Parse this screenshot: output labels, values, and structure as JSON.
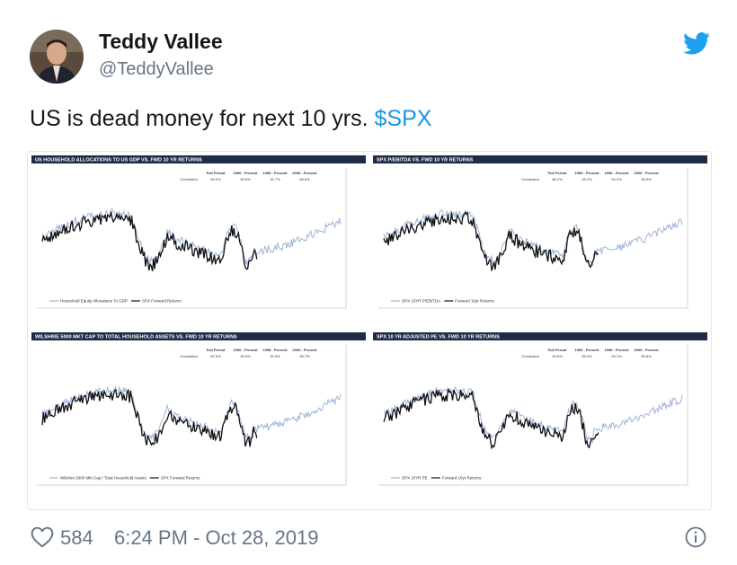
{
  "header": {
    "name": "Teddy Vallee",
    "handle": "@TeddyVallee"
  },
  "tweet": {
    "text": "US is dead money for next 10 yrs.",
    "cashtag": "$SPX"
  },
  "panels": [
    {
      "title": "US HOUSEHOLD ALLOCATIONS TO US GDP VS. FWD 10 YR RETURNS",
      "columns": [
        "Full Period",
        "1990 - Present",
        "1998 - Present",
        "2009 - Present"
      ],
      "row_label": "Correlation",
      "values": [
        "84.2%",
        "90.8%",
        "92.7%",
        "89.6%"
      ],
      "legend": [
        "Household Equity Allocations To GDP",
        "SPX Forward Returns"
      ]
    },
    {
      "title": "SPX P/EBITDA VS. FWD 10 YR RETURNS",
      "columns": [
        "Full Period",
        "1990 - Present",
        "1998 - Present",
        "2009 - Present"
      ],
      "row_label": "Correlation",
      "values": [
        "86.2%",
        "94.2%",
        "94.2%",
        "96.9%"
      ],
      "legend": [
        "SPX 10YR P/EBITDA",
        "Forward 10yr Returns"
      ]
    },
    {
      "title": "WILSHIRE 5000 MKT CAP TO TOTAL HOUSEHOLD ASSETS VS. FWD 10 YR RETURNS",
      "columns": [
        "Full Period",
        "1990 - Present",
        "1998 - Present",
        "2009 - Present"
      ],
      "row_label": "Correlation",
      "values": [
        "87.6%",
        "95.5%",
        "92.3%",
        "96.7%"
      ],
      "legend": [
        "Wilshire 5000 Mkt Cap / Total Household Assets",
        "SPX Forward Returns"
      ]
    },
    {
      "title": "SPX 10 YR ADJUSTED PE VS. FWD 10 YR RETURNS",
      "columns": [
        "Full Period",
        "1990 - Present",
        "1998 - Present",
        "2009 - Present"
      ],
      "row_label": "Correlation",
      "values": [
        "93.6%",
        "93.4%",
        "93.1%",
        "96.8%"
      ],
      "legend": [
        "SPX 10YR PE",
        "Forward 10yr Returns"
      ]
    }
  ],
  "footer": {
    "likes": "584",
    "time": "6:24 PM - Oct 28, 2019"
  }
}
